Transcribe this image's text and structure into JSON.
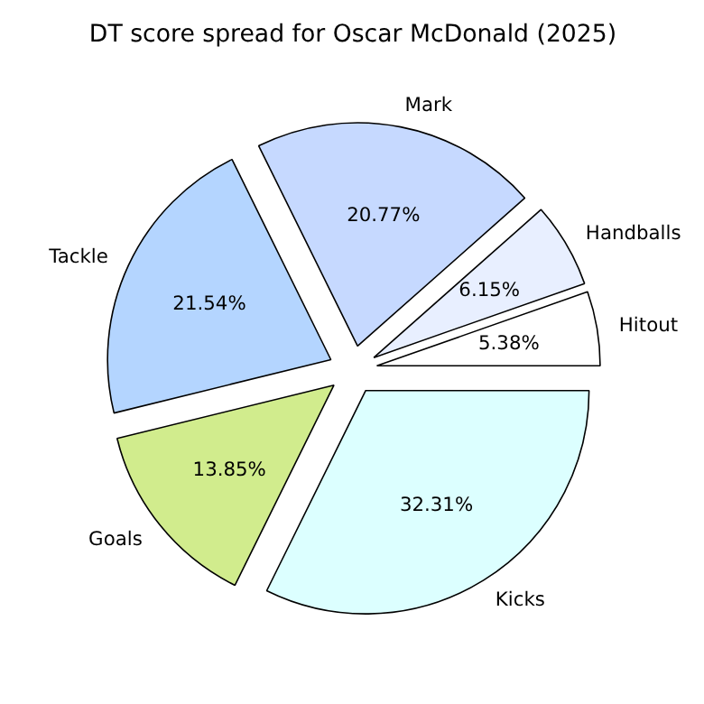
{
  "chart_data": {
    "type": "pie",
    "title": "DT score spread for Oscar McDonald (2025)",
    "categories": [
      "Hitout",
      "Handballs",
      "Mark",
      "Tackle",
      "Goals",
      "Kicks"
    ],
    "values": [
      5.38,
      6.15,
      20.77,
      21.54,
      13.85,
      32.31
    ],
    "colors": [
      "#ffffff",
      "#e8efff",
      "#c6d9ff",
      "#b4d5ff",
      "#d1ec8d",
      "#dcffff"
    ],
    "value_labels": [
      "5.38%",
      "6.15%",
      "20.77%",
      "21.54%",
      "13.85%",
      "32.31%"
    ]
  }
}
